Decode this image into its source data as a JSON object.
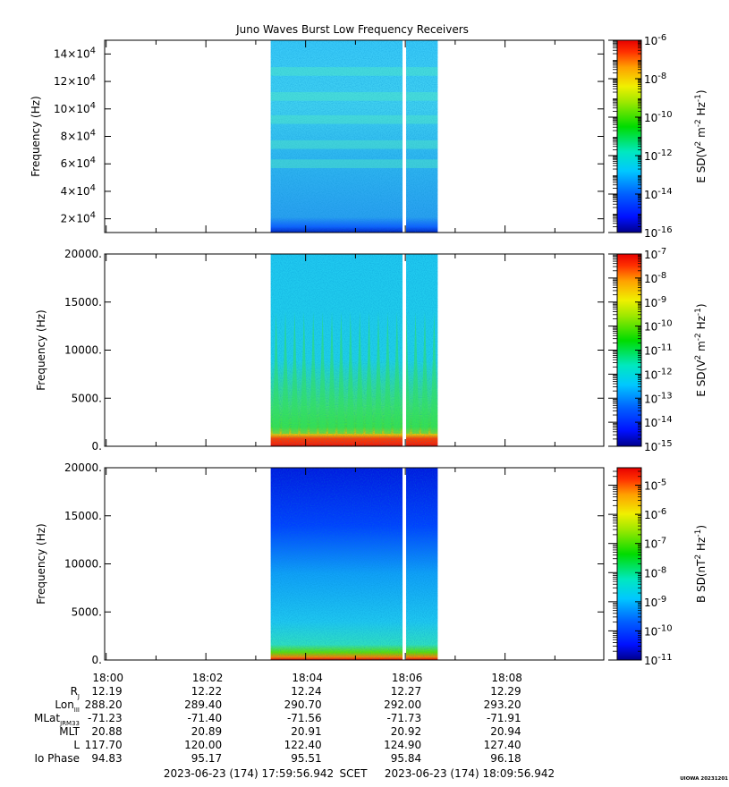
{
  "title": "Juno Waves Burst Low Frequency Receivers",
  "chart_data": [
    {
      "type": "heatmap",
      "ylabel": "Frequency (Hz)",
      "ylim": [
        10000,
        150000
      ],
      "yticks": [
        20000,
        40000,
        60000,
        80000,
        100000,
        120000,
        140000
      ],
      "ytick_labels": [
        {
          "mant": "2×10",
          "exp": "4"
        },
        {
          "mant": "4×10",
          "exp": "4"
        },
        {
          "mant": "6×10",
          "exp": "4"
        },
        {
          "mant": "8×10",
          "exp": "4"
        },
        {
          "mant": "10×10",
          "exp": "4"
        },
        {
          "mant": "12×10",
          "exp": "4"
        },
        {
          "mant": "14×10",
          "exp": "4"
        }
      ],
      "colorbar": {
        "label_parts": [
          "E SD(V",
          "2",
          " m",
          "-2",
          " Hz",
          "-1",
          ")"
        ],
        "log_range": [
          -16,
          -6
        ],
        "ticks": [
          {
            "mant": "10",
            "exp": "-6",
            "log": -6
          },
          {
            "mant": "10",
            "exp": "-8",
            "log": -8
          },
          {
            "mant": "10",
            "exp": "-10",
            "log": -10
          },
          {
            "mant": "10",
            "exp": "-12",
            "log": -12
          },
          {
            "mant": "10",
            "exp": "-14",
            "log": -14
          },
          {
            "mant": "10",
            "exp": "-16",
            "log": -16
          }
        ]
      }
    },
    {
      "type": "heatmap",
      "ylabel": "Frequency (Hz)",
      "ylim": [
        0,
        20000
      ],
      "yticks": [
        0,
        5000,
        10000,
        15000,
        20000
      ],
      "ytick_labels": [
        "0.",
        "5000.",
        "10000.",
        "15000.",
        "20000."
      ],
      "colorbar": {
        "label_parts": [
          "E SD(V",
          "2",
          " m",
          "-2",
          " Hz",
          "-1",
          ")"
        ],
        "log_range": [
          -15,
          -7
        ],
        "ticks": [
          {
            "mant": "10",
            "exp": "-7",
            "log": -7
          },
          {
            "mant": "10",
            "exp": "-8",
            "log": -8
          },
          {
            "mant": "10",
            "exp": "-9",
            "log": -9
          },
          {
            "mant": "10",
            "exp": "-10",
            "log": -10
          },
          {
            "mant": "10",
            "exp": "-11",
            "log": -11
          },
          {
            "mant": "10",
            "exp": "-12",
            "log": -12
          },
          {
            "mant": "10",
            "exp": "-13",
            "log": -13
          },
          {
            "mant": "10",
            "exp": "-14",
            "log": -14
          },
          {
            "mant": "10",
            "exp": "-15",
            "log": -15
          }
        ]
      }
    },
    {
      "type": "heatmap",
      "ylabel": "Frequency (Hz)",
      "ylim": [
        0,
        20000
      ],
      "yticks": [
        0,
        5000,
        10000,
        15000,
        20000
      ],
      "ytick_labels": [
        "0.",
        "5000.",
        "10000.",
        "15000.",
        "20000."
      ],
      "colorbar": {
        "label_parts": [
          "B SD(nT",
          "2",
          " Hz",
          "-1",
          ")"
        ],
        "log_range": [
          -11,
          -4.4
        ],
        "ticks": [
          {
            "mant": "10",
            "exp": "-5",
            "log": -5
          },
          {
            "mant": "10",
            "exp": "-6",
            "log": -6
          },
          {
            "mant": "10",
            "exp": "-7",
            "log": -7
          },
          {
            "mant": "10",
            "exp": "-8",
            "log": -8
          },
          {
            "mant": "10",
            "exp": "-9",
            "log": -9
          },
          {
            "mant": "10",
            "exp": "-10",
            "log": -10
          },
          {
            "mant": "10",
            "exp": "-11",
            "log": -11
          }
        ]
      }
    }
  ],
  "time_axis": {
    "xlim_minutes": [
      -0.03,
      9.98
    ],
    "data_span_minutes": [
      3.3,
      6.65
    ],
    "gap_minutes": 5.98,
    "major_ticks": [
      {
        "label": "18:00",
        "minute": 0
      },
      {
        "label": "18:02",
        "minute": 2
      },
      {
        "label": "18:04",
        "minute": 4
      },
      {
        "label": "18:06",
        "minute": 6
      },
      {
        "label": "18:08",
        "minute": 8
      }
    ]
  },
  "ephemeris": [
    {
      "label": "R",
      "sub": "J",
      "values": [
        "12.19",
        "12.22",
        "12.24",
        "12.27",
        "12.29"
      ]
    },
    {
      "label": "Lon",
      "sub": "III",
      "values": [
        "288.20",
        "289.40",
        "290.70",
        "292.00",
        "293.20"
      ]
    },
    {
      "label": "MLat",
      "sub": "JRM33",
      "values": [
        "-71.23",
        "-71.40",
        "-71.56",
        "-71.73",
        "-71.91"
      ]
    },
    {
      "label": "MLT",
      "sub": "",
      "values": [
        "20.88",
        "20.89",
        "20.91",
        "20.92",
        "20.94"
      ]
    },
    {
      "label": "L",
      "sub": "",
      "values": [
        "117.70",
        "120.00",
        "122.40",
        "124.90",
        "127.40"
      ]
    },
    {
      "label": "Io Phase",
      "sub": "",
      "values": [
        "94.83",
        "95.17",
        "95.51",
        "95.84",
        "96.18"
      ]
    }
  ],
  "footer": {
    "start": "2023-06-23 (174) 17:59:56.942",
    "scet": "SCET",
    "end": "2023-06-23 (174) 18:09:56.942"
  },
  "stamp": "UIOWA 20231201"
}
